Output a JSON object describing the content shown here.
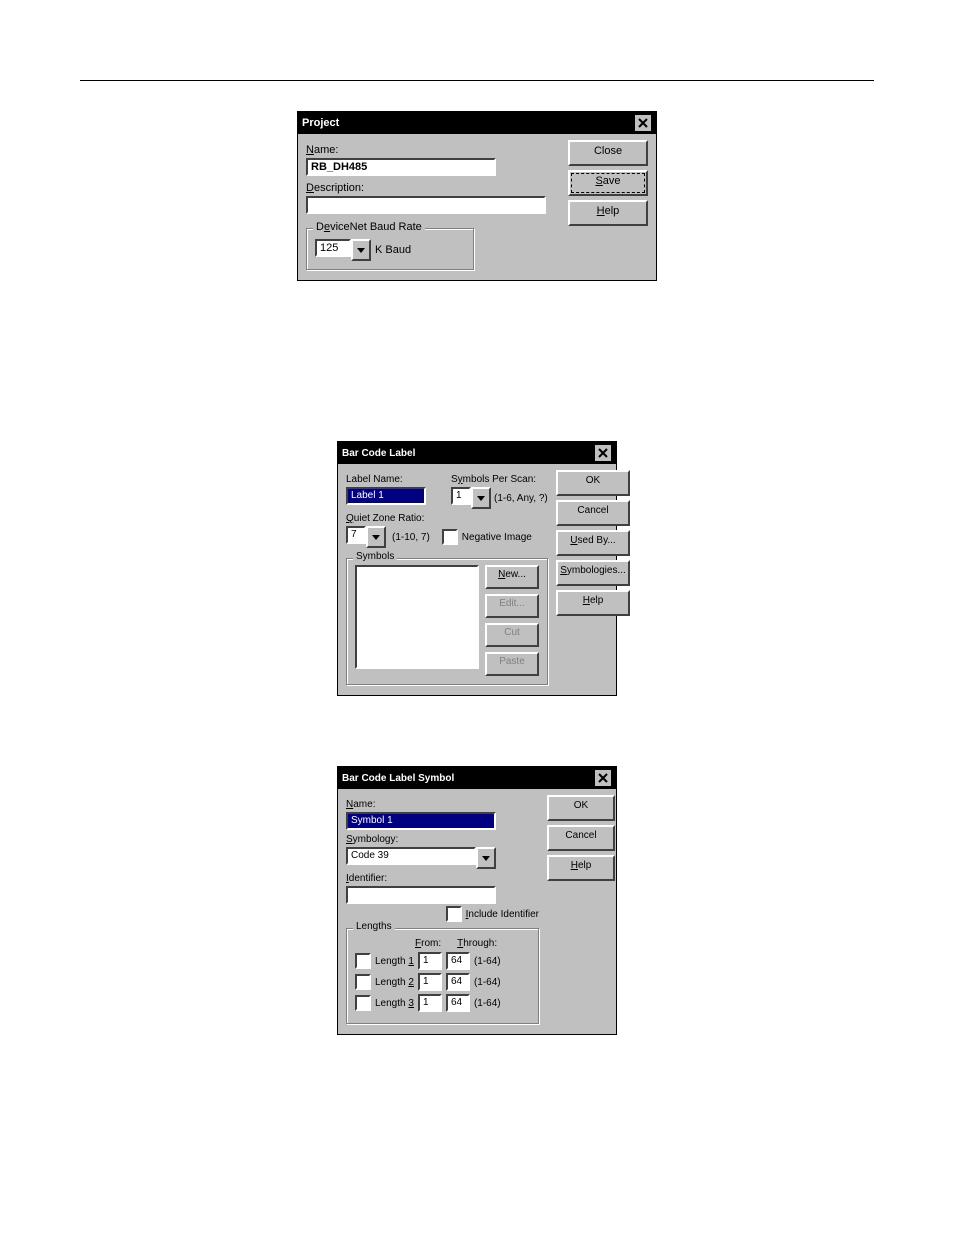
{
  "project_dialog": {
    "title": "Project",
    "name_label": "Name:",
    "name_value": "RB_DH485",
    "description_label": "Description:",
    "description_value": "",
    "baud_group_label": "DeviceNet Baud Rate",
    "baud_value": "125",
    "baud_suffix": "K Baud",
    "buttons": {
      "close": "Close",
      "save": "Save",
      "help": "Help"
    }
  },
  "bclabel_dialog": {
    "title": "Bar Code Label",
    "label_name_label": "Label Name:",
    "label_name_value": "Label 1",
    "symbols_per_scan_label": "Symbols Per Scan:",
    "symbols_per_scan_value": "1",
    "symbols_per_scan_hint": "(1-6, Any, ?)",
    "quiet_zone_label": "Quiet Zone Ratio:",
    "quiet_zone_value": "7",
    "quiet_zone_hint": "(1-10, 7)",
    "negative_image_label": "Negative Image",
    "symbols_group_label": "Symbols",
    "symbol_buttons": {
      "new": "New...",
      "edit": "Edit...",
      "cut": "Cut",
      "paste": "Paste"
    },
    "side_buttons": {
      "ok": "OK",
      "cancel": "Cancel",
      "used_by": "Used By...",
      "symbologies": "Symbologies...",
      "help": "Help"
    }
  },
  "bcsymbol_dialog": {
    "title": "Bar Code Label Symbol",
    "name_label": "Name:",
    "name_value": "Symbol 1",
    "symbology_label": "Symbology:",
    "symbology_value": "Code 39",
    "identifier_label": "Identifier:",
    "identifier_value": "",
    "include_identifier_label": "Include Identifier",
    "lengths_group_label": "Lengths",
    "from_label": "From:",
    "through_label": "Through:",
    "rows": [
      {
        "label": "Length 1",
        "from": "1",
        "through": "64",
        "hint": "(1-64)"
      },
      {
        "label": "Length 2",
        "from": "1",
        "through": "64",
        "hint": "(1-64)"
      },
      {
        "label": "Length 3",
        "from": "1",
        "through": "64",
        "hint": "(1-64)"
      }
    ],
    "side_buttons": {
      "ok": "OK",
      "cancel": "Cancel",
      "help": "Help"
    }
  }
}
